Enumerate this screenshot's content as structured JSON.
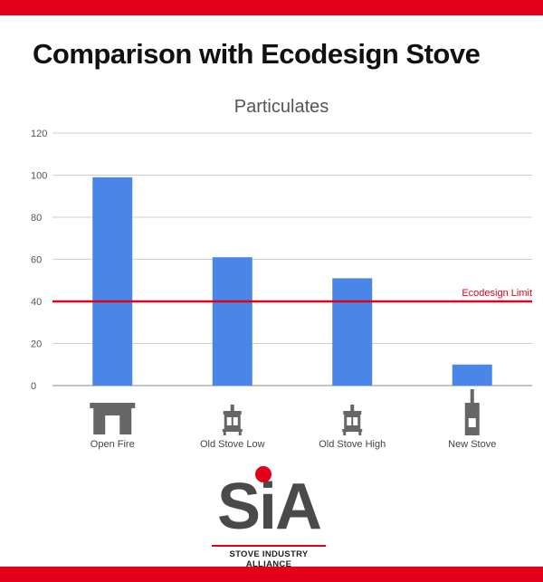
{
  "header": {
    "title": "Comparison with Ecodesign Stove"
  },
  "colors": {
    "accent_red": "#e2001a",
    "bar_blue": "#4a86e8",
    "icon_gray": "#666666"
  },
  "chart_data": {
    "type": "bar",
    "title": "Particulates",
    "categories": [
      "Open Fire",
      "Old Stove Low",
      "Old Stove High",
      "New Stove"
    ],
    "values": [
      99,
      61,
      51,
      10
    ],
    "ylim": [
      0,
      120
    ],
    "yticks": [
      0,
      20,
      40,
      60,
      80,
      100,
      120
    ],
    "grid": true,
    "reference_line": {
      "label": "Ecodesign Limit",
      "value": 40
    },
    "category_icons": [
      "fireplace-icon",
      "stove-icon",
      "stove-icon",
      "modern-stove-icon"
    ]
  },
  "logo": {
    "letters": "SiA",
    "subtitle": "STOVE INDUSTRY ALLIANCE"
  }
}
